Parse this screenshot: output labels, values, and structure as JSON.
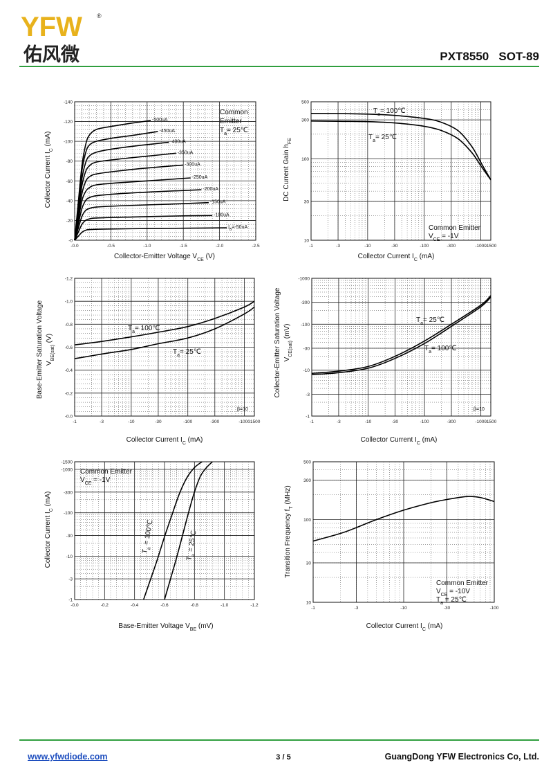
{
  "header": {
    "logo_text": "YFW",
    "logo_registered": "®",
    "logo_chinese": "佑风微",
    "part_title": "PXT8550   SOT-89",
    "accent_color": "#2f9e3e",
    "logo_color": "#e8b21c"
  },
  "footer": {
    "url": "www.yfwdiode.com",
    "page": "3 / 5",
    "company": "GuangDong YFW Electronics Co, Ltd."
  },
  "chart_data": [
    {
      "id": "c1",
      "type": "line",
      "xlabel": "Collector-Emitter Voltage  V",
      "xlabel_sub": "CE",
      "xlabel_unit": "  (V)",
      "ylabel": "Collector Current  I",
      "ylabel_sub": "C",
      "ylabel_unit": "  (mA)",
      "x_scale": "linear",
      "y_scale": "linear",
      "xlim": [
        0,
        -2.5
      ],
      "ylim": [
        0,
        -140
      ],
      "x_ticks": [
        "-0.0",
        "-0.5",
        "-1.0",
        "-1.5",
        "-2.0",
        "-2.5"
      ],
      "y_ticks": [
        "-0",
        "-20",
        "-40",
        "-60",
        "-80",
        "-100",
        "-120",
        "-140"
      ],
      "grid": true,
      "annotations": [
        "Common",
        "Emitter",
        "T",
        "a",
        "= 25℃"
      ],
      "series": [
        {
          "name": "-500uA",
          "x": [
            0,
            -0.05,
            -0.1,
            -0.15,
            -0.2,
            -0.3,
            -0.5,
            -0.75,
            -1.05
          ],
          "y": [
            0,
            -38,
            -75,
            -96,
            -106,
            -112,
            -115,
            -118,
            -121
          ]
        },
        {
          "name": "-450uA",
          "x": [
            0,
            -0.05,
            -0.1,
            -0.15,
            -0.2,
            -0.3,
            -0.5,
            -0.8,
            -1.15
          ],
          "y": [
            0,
            -35,
            -70,
            -88,
            -96,
            -100,
            -103,
            -106,
            -110
          ]
        },
        {
          "name": "-400uA",
          "x": [
            0,
            -0.05,
            -0.1,
            -0.15,
            -0.2,
            -0.3,
            -0.5,
            -0.8,
            -1.3
          ],
          "y": [
            0,
            -32,
            -62,
            -78,
            -85,
            -89,
            -92,
            -95,
            -99
          ]
        },
        {
          "name": "-350uA",
          "x": [
            0,
            -0.05,
            -0.1,
            -0.15,
            -0.2,
            -0.3,
            -0.6,
            -1.0,
            -1.4
          ],
          "y": [
            0,
            -28,
            -55,
            -69,
            -75,
            -79,
            -82,
            -85,
            -88
          ]
        },
        {
          "name": "-300uA",
          "x": [
            0,
            -0.05,
            -0.1,
            -0.15,
            -0.2,
            -0.3,
            -0.6,
            -1.0,
            -1.5
          ],
          "y": [
            0,
            -24,
            -47,
            -59,
            -64,
            -67,
            -70,
            -73,
            -76
          ]
        },
        {
          "name": "-250uA",
          "x": [
            0,
            -0.05,
            -0.1,
            -0.15,
            -0.2,
            -0.3,
            -0.6,
            -1.0,
            -1.6
          ],
          "y": [
            0,
            -20,
            -40,
            -49,
            -53,
            -56,
            -58,
            -60,
            -63
          ]
        },
        {
          "name": "-200uA",
          "x": [
            0,
            -0.05,
            -0.1,
            -0.15,
            -0.2,
            -0.3,
            -0.6,
            -1.1,
            -1.75
          ],
          "y": [
            0,
            -16,
            -32,
            -40,
            -43,
            -45,
            -47,
            -49,
            -51
          ]
        },
        {
          "name": "-150uA",
          "x": [
            0,
            -0.05,
            -0.1,
            -0.15,
            -0.2,
            -0.3,
            -0.7,
            -1.3,
            -1.85
          ],
          "y": [
            0,
            -12,
            -24,
            -30,
            -32,
            -33.5,
            -35,
            -36.5,
            -38
          ]
        },
        {
          "name": "-100uA",
          "x": [
            0,
            -0.05,
            -0.1,
            -0.15,
            -0.2,
            -0.3,
            -0.8,
            -1.4,
            -1.9
          ],
          "y": [
            0,
            -8,
            -16,
            -20,
            -21.5,
            -22.5,
            -23.5,
            -24.5,
            -25
          ]
        },
        {
          "name": "I",
          "name_sub": "B",
          "name_rest": "=-50uA",
          "x": [
            0,
            -0.05,
            -0.1,
            -0.15,
            -0.2,
            -0.4,
            -1.0,
            -1.6,
            -2.1
          ],
          "y": [
            0,
            -4,
            -8,
            -10,
            -10.8,
            -11.3,
            -11.8,
            -12.2,
            -12.5
          ]
        }
      ]
    },
    {
      "id": "c2",
      "type": "line",
      "xlabel": "Collector Current  I",
      "xlabel_sub": "C",
      "xlabel_unit": "  (mA)",
      "ylabel": "DC Current Gain  h",
      "ylabel_sub": "FE",
      "ylabel_unit": "",
      "x_scale": "log",
      "y_scale": "log",
      "xlim": [
        -1,
        -1500
      ],
      "ylim": [
        10,
        500
      ],
      "x_ticks": [
        "-1",
        "-3",
        "-10",
        "-30",
        "-100",
        "-300",
        "-1000",
        "-1500"
      ],
      "y_ticks": [
        "10",
        "30",
        "100",
        "300",
        "500"
      ],
      "grid": true,
      "annotations": [
        "Common Emitter",
        "V",
        "CE",
        " = -1V"
      ],
      "series": [
        {
          "name": "T",
          "name_sub": "a",
          "name_rest": "= 100℃",
          "x": [
            -1,
            -3,
            -10,
            -30,
            -100,
            -200,
            -400,
            -700,
            -1000,
            -1500
          ],
          "y": [
            360,
            358,
            353,
            340,
            312,
            280,
            220,
            140,
            90,
            55
          ]
        },
        {
          "name": "T",
          "name_sub": "a",
          "name_rest": "= 25℃",
          "x": [
            -1,
            -3,
            -10,
            -30,
            -100,
            -200,
            -400,
            -700,
            -1000,
            -1500
          ],
          "y": [
            290,
            288,
            285,
            275,
            250,
            222,
            175,
            118,
            82,
            55
          ]
        }
      ]
    },
    {
      "id": "c3",
      "type": "line",
      "xlabel": "Collector Current  I",
      "xlabel_sub": "C",
      "xlabel_unit": "  (mA)",
      "ylabel": "Base-Emitter Saturation Voltage",
      "ylabel2": "V",
      "ylabel2_sub": "BE(sat)",
      "ylabel2_unit": "  (V)",
      "x_scale": "log",
      "y_scale": "linear",
      "xlim": [
        -1,
        -1500
      ],
      "ylim": [
        0,
        -1.2
      ],
      "x_ticks": [
        "-1",
        "-3",
        "-10",
        "-30",
        "-100",
        "-300",
        "-1000",
        "-1500"
      ],
      "y_ticks": [
        "-0.0",
        "-0.2",
        "-0.4",
        "-0.6",
        "-0.8",
        "-1.0",
        "-1.2"
      ],
      "grid": true,
      "annotations": [
        "β=10"
      ],
      "series": [
        {
          "name": "T",
          "name_sub": "a",
          "name_rest": "= 100℃",
          "x": [
            -1,
            -3,
            -10,
            -30,
            -100,
            -300,
            -1000,
            -1500
          ],
          "y": [
            -0.62,
            -0.65,
            -0.69,
            -0.73,
            -0.78,
            -0.85,
            -0.95,
            -1.0
          ]
        },
        {
          "name": "T",
          "name_sub": "a",
          "name_rest": "= 25℃",
          "x": [
            -1,
            -3,
            -10,
            -30,
            -100,
            -300,
            -1000,
            -1500
          ],
          "y": [
            -0.5,
            -0.54,
            -0.58,
            -0.63,
            -0.68,
            -0.76,
            -0.89,
            -0.95
          ]
        }
      ]
    },
    {
      "id": "c4",
      "type": "line",
      "xlabel": "Collector Current  I",
      "xlabel_sub": "C",
      "xlabel_unit": "  (mA)",
      "ylabel": "Collector-Emitter Saturation Voltage",
      "ylabel2": "V",
      "ylabel2_sub": "CE(sat)",
      "ylabel2_unit": "  (mV)",
      "x_scale": "log",
      "y_scale": "log",
      "xlim": [
        -1,
        -1500
      ],
      "ylim": [
        -1,
        -1000
      ],
      "x_ticks": [
        "-1",
        "-3",
        "-10",
        "-30",
        "-100",
        "-300",
        "-1000",
        "-1500"
      ],
      "y_ticks": [
        "-1",
        "-3",
        "-10",
        "-30",
        "-100",
        "-300",
        "-1000"
      ],
      "grid": true,
      "annotations": [
        "β=10"
      ],
      "series": [
        {
          "name": "T",
          "name_sub": "a",
          "name_rest": "= 25℃",
          "x": [
            -1,
            -3,
            -10,
            -30,
            -100,
            -300,
            -1000,
            -1500
          ],
          "y": [
            -8.5,
            -9.5,
            -12,
            -20,
            -43,
            -100,
            -260,
            -420
          ]
        },
        {
          "name": "T",
          "name_sub": "a",
          "name_rest": "= 100℃",
          "x": [
            -1,
            -3,
            -10,
            -30,
            -100,
            -300,
            -1000,
            -1500
          ],
          "y": [
            -8,
            -8.8,
            -11,
            -18,
            -38,
            -90,
            -240,
            -390
          ]
        }
      ]
    },
    {
      "id": "c5",
      "type": "line",
      "xlabel": "Base-Emitter Voltage  V",
      "xlabel_sub": "BE",
      "xlabel_unit": "  (mV)",
      "ylabel": "Collector Current  I",
      "ylabel_sub": "C",
      "ylabel_unit": "  (mA)",
      "x_scale": "linear",
      "y_scale": "log",
      "xlim": [
        0,
        -1.2
      ],
      "ylim": [
        -1,
        -1500
      ],
      "x_ticks": [
        "-0.0",
        "-0.2",
        "-0.4",
        "-0.6",
        "-0.8",
        "-1.0",
        "-1.2"
      ],
      "y_ticks": [
        "-1",
        "-3",
        "-10",
        "-30",
        "-100",
        "-300",
        "-1000",
        "-1500"
      ],
      "grid": true,
      "annotations": [
        "Common Emitter",
        "V",
        "CE",
        " = -1V"
      ],
      "series": [
        {
          "name": "T",
          "name_sub": "a",
          "name_rest": " = 100℃",
          "x": [
            -0.46,
            -0.5,
            -0.55,
            -0.6,
            -0.65,
            -0.7,
            -0.75,
            -0.8,
            -0.85
          ],
          "y": [
            -1,
            -2.5,
            -8,
            -28,
            -90,
            -280,
            -650,
            -1100,
            -1500
          ]
        },
        {
          "name": "T",
          "name_sub": "a",
          "name_rest": " = 25℃",
          "x": [
            -0.6,
            -0.64,
            -0.68,
            -0.72,
            -0.76,
            -0.8,
            -0.84,
            -0.88,
            -0.92
          ],
          "y": [
            -1,
            -3,
            -9,
            -30,
            -100,
            -300,
            -700,
            -1100,
            -1500
          ]
        }
      ]
    },
    {
      "id": "c6",
      "type": "line",
      "xlabel": "Collector Current  I",
      "xlabel_sub": "C",
      "xlabel_unit": "  (mA)",
      "ylabel": "Transition Frequency  f",
      "ylabel_sub": "T",
      "ylabel_unit": "  (MHz)",
      "x_scale": "log",
      "y_scale": "log",
      "xlim": [
        -1,
        -100
      ],
      "ylim": [
        10,
        500
      ],
      "x_ticks": [
        "-1",
        "-3",
        "-10",
        "-30",
        "-100"
      ],
      "y_ticks": [
        "10",
        "30",
        "100",
        "300",
        "500"
      ],
      "grid": true,
      "annotations": [
        "Common Emitter",
        "V",
        "CE",
        " = -10V",
        "T",
        "a",
        " = 25℃"
      ],
      "series": [
        {
          "name": "",
          "x": [
            -1,
            -2,
            -3,
            -5,
            -10,
            -20,
            -30,
            -50,
            -70,
            -100
          ],
          "y": [
            55,
            68,
            80,
            100,
            130,
            160,
            175,
            190,
            185,
            165
          ]
        }
      ]
    }
  ]
}
